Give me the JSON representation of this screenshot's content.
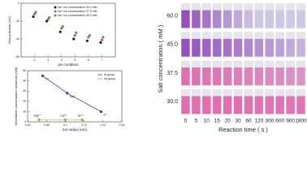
{
  "chart_data": [
    {
      "type": "scatter",
      "x_label": "pH condition",
      "y_label": "Zeta potential (mV)",
      "x": [
        2,
        3,
        4,
        5,
        6,
        7
      ],
      "xlim": [
        1,
        8
      ],
      "xticks": [
        2,
        3,
        4,
        5,
        6,
        7
      ],
      "ylim": [
        -60,
        0
      ],
      "yticks": [
        0,
        -20,
        -40,
        -60
      ],
      "series": [
        {
          "name": "Na⁺ ion concentration 30.0 mM",
          "color": "#222222",
          "values": [
            -15,
            -20,
            -32,
            -40,
            -42,
            -44
          ]
        },
        {
          "name": "Na⁺ ion concentration 37.5 mM",
          "color": "#e8456b",
          "values": [
            -12,
            -18,
            -28,
            -36,
            -38,
            -41
          ]
        },
        {
          "name": "Na⁺ ion concentration 45.0 mM",
          "color": "#3aa84a",
          "values": [
            -10,
            -16,
            -26,
            -33,
            -36,
            -38
          ]
        }
      ]
    },
    {
      "type": "line",
      "x_label": "Ion radius (nm)",
      "y_label": "Detectable concentration minimum (mM)",
      "xlim": [
        0.06,
        0.16
      ],
      "xticks": [
        0.06,
        0.08,
        0.1,
        0.12,
        0.14,
        0.16
      ],
      "ylim": [
        0,
        50
      ],
      "yticks": [
        0,
        10,
        20,
        30,
        40,
        50
      ],
      "series": [
        {
          "name": "IA group",
          "color": "#2b4f9e",
          "x": [
            0.076,
            0.102,
            0.138
          ],
          "values": [
            45,
            28,
            10
          ],
          "point_labels": [
            "Li⁺",
            "Na⁺",
            "K⁺"
          ]
        },
        {
          "name": "IIA group",
          "color": "#7cc243",
          "x": [
            0.072,
            0.1,
            0.118
          ],
          "values": [
            2,
            2,
            2
          ],
          "point_labels": [
            "Mg²⁺",
            "Ca²⁺",
            "Sr²⁺"
          ]
        }
      ]
    },
    {
      "type": "image-grid",
      "x_label": "Reaction time ( s )",
      "y_label": "Salt concentration ( mM )",
      "categories": [
        "0",
        "5",
        "10",
        "15",
        "20",
        "30",
        "60",
        "120",
        "300",
        "600",
        "900",
        "1800"
      ],
      "rows": [
        "60.0",
        "45.0",
        "37.5",
        "30.0"
      ]
    }
  ]
}
